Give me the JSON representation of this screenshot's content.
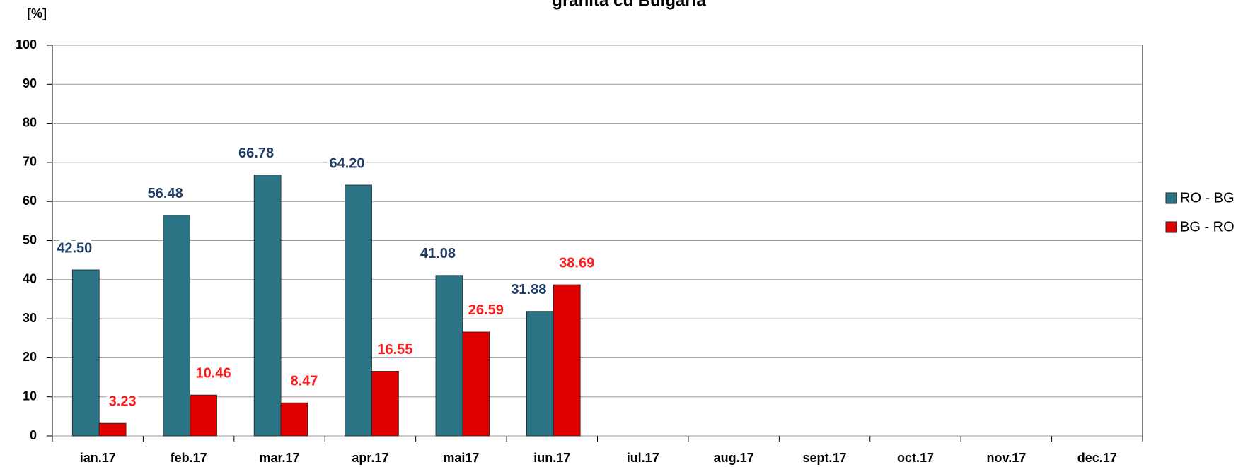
{
  "chart_data": {
    "type": "bar",
    "title": "granita cu Bulgaria",
    "y_label": "[%]",
    "categories": [
      "ian.17",
      "feb.17",
      "mar.17",
      "apr.17",
      "mai17",
      "iun.17",
      "iul.17",
      "aug.17",
      "sept.17",
      "oct.17",
      "nov.17",
      "dec.17"
    ],
    "series": [
      {
        "name": "RO - BG",
        "color": "#2b7486",
        "label_color": "#1f3d66",
        "values": [
          42.5,
          56.48,
          66.78,
          64.2,
          41.08,
          31.88,
          null,
          null,
          null,
          null,
          null,
          null
        ],
        "value_labels": [
          "42.50",
          "56.48",
          "66.78",
          "64.20",
          "41.08",
          "31.88",
          null,
          null,
          null,
          null,
          null,
          null
        ]
      },
      {
        "name": "BG - RO",
        "color": "#e00000",
        "label_color": "#ff1a1a",
        "values": [
          3.23,
          10.46,
          8.47,
          16.55,
          26.59,
          38.69,
          null,
          null,
          null,
          null,
          null,
          null
        ],
        "value_labels": [
          "3.23",
          "10.46",
          "8.47",
          "16.55",
          "26.59",
          "38.69",
          null,
          null,
          null,
          null,
          null,
          null
        ]
      }
    ],
    "ylim": [
      0,
      100
    ],
    "yticks": [
      0,
      10,
      20,
      30,
      40,
      50,
      60,
      70,
      80,
      90,
      100
    ],
    "grid": true,
    "legend": "right"
  }
}
